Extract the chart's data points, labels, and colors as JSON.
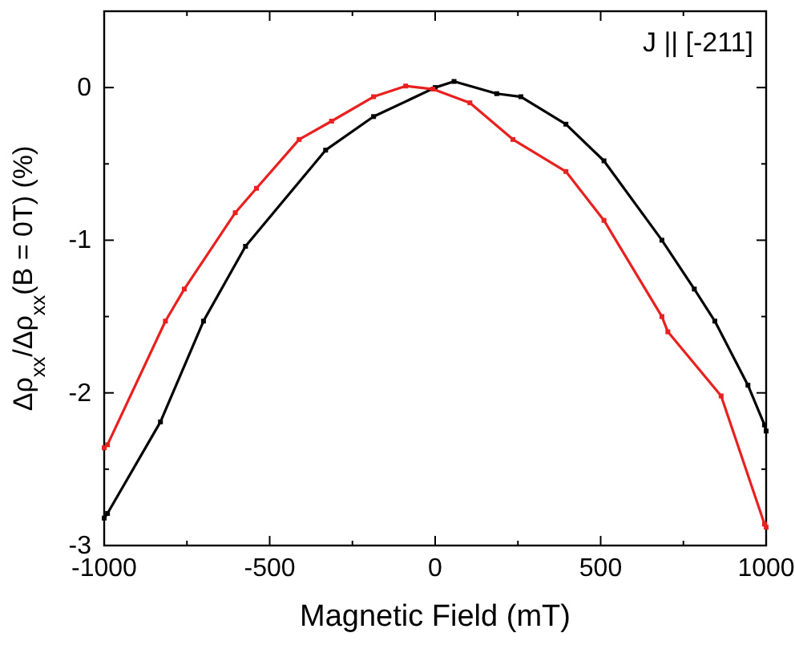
{
  "chart_data": {
    "type": "line",
    "xlabel": "Magnetic Field (mT)",
    "ylabel": "Δρ$_{xx}$/Δρ$_{xx}$(B = 0T) (%)",
    "annotations": [
      "J || [-211]"
    ],
    "xlim": [
      -1000,
      1000
    ],
    "ylim": [
      -3,
      0.5
    ],
    "xticks": [
      -1000,
      {
        "value": -750,
        "label": null
      },
      -500,
      {
        "value": -250,
        "label": null
      },
      0,
      {
        "value": 250,
        "label": null
      },
      500,
      {
        "value": 750,
        "label": null
      },
      1000
    ],
    "yticks": [
      -3,
      {
        "value": -2.5,
        "label": null
      },
      -2,
      {
        "value": -1.5,
        "label": null
      },
      -1,
      {
        "value": -0.5,
        "label": null
      },
      0
    ],
    "grid": false,
    "marker": "square",
    "line_style": "solid",
    "series": [
      {
        "color": "#000000",
        "x": [
          -1000,
          -990,
          -830,
          -700,
          -573,
          -331,
          -186,
          0,
          57,
          186,
          259,
          395,
          510,
          685,
          783,
          845,
          945,
          995,
          1000
        ],
        "values": [
          -2.82,
          -2.79,
          -2.19,
          -1.53,
          -1.04,
          -0.41,
          -0.19,
          0,
          0.04,
          -0.04,
          -0.06,
          -0.24,
          -0.48,
          -1.0,
          -1.32,
          -1.53,
          -1.95,
          -2.21,
          -2.25
        ]
      },
      {
        "color": "#e8201f",
        "x": [
          -1000,
          -990,
          -815,
          -758,
          -604,
          -540,
          -411,
          -313,
          -186,
          -89,
          -7,
          105,
          235,
          395,
          510,
          685,
          703,
          864,
          995,
          1000
        ],
        "values": [
          -2.36,
          -2.34,
          -1.53,
          -1.32,
          -0.82,
          -0.66,
          -0.34,
          -0.22,
          -0.06,
          0.01,
          -0.01,
          -0.1,
          -0.34,
          -0.55,
          -0.87,
          -1.5,
          -1.6,
          -2.02,
          -2.86,
          -2.88
        ]
      }
    ]
  }
}
